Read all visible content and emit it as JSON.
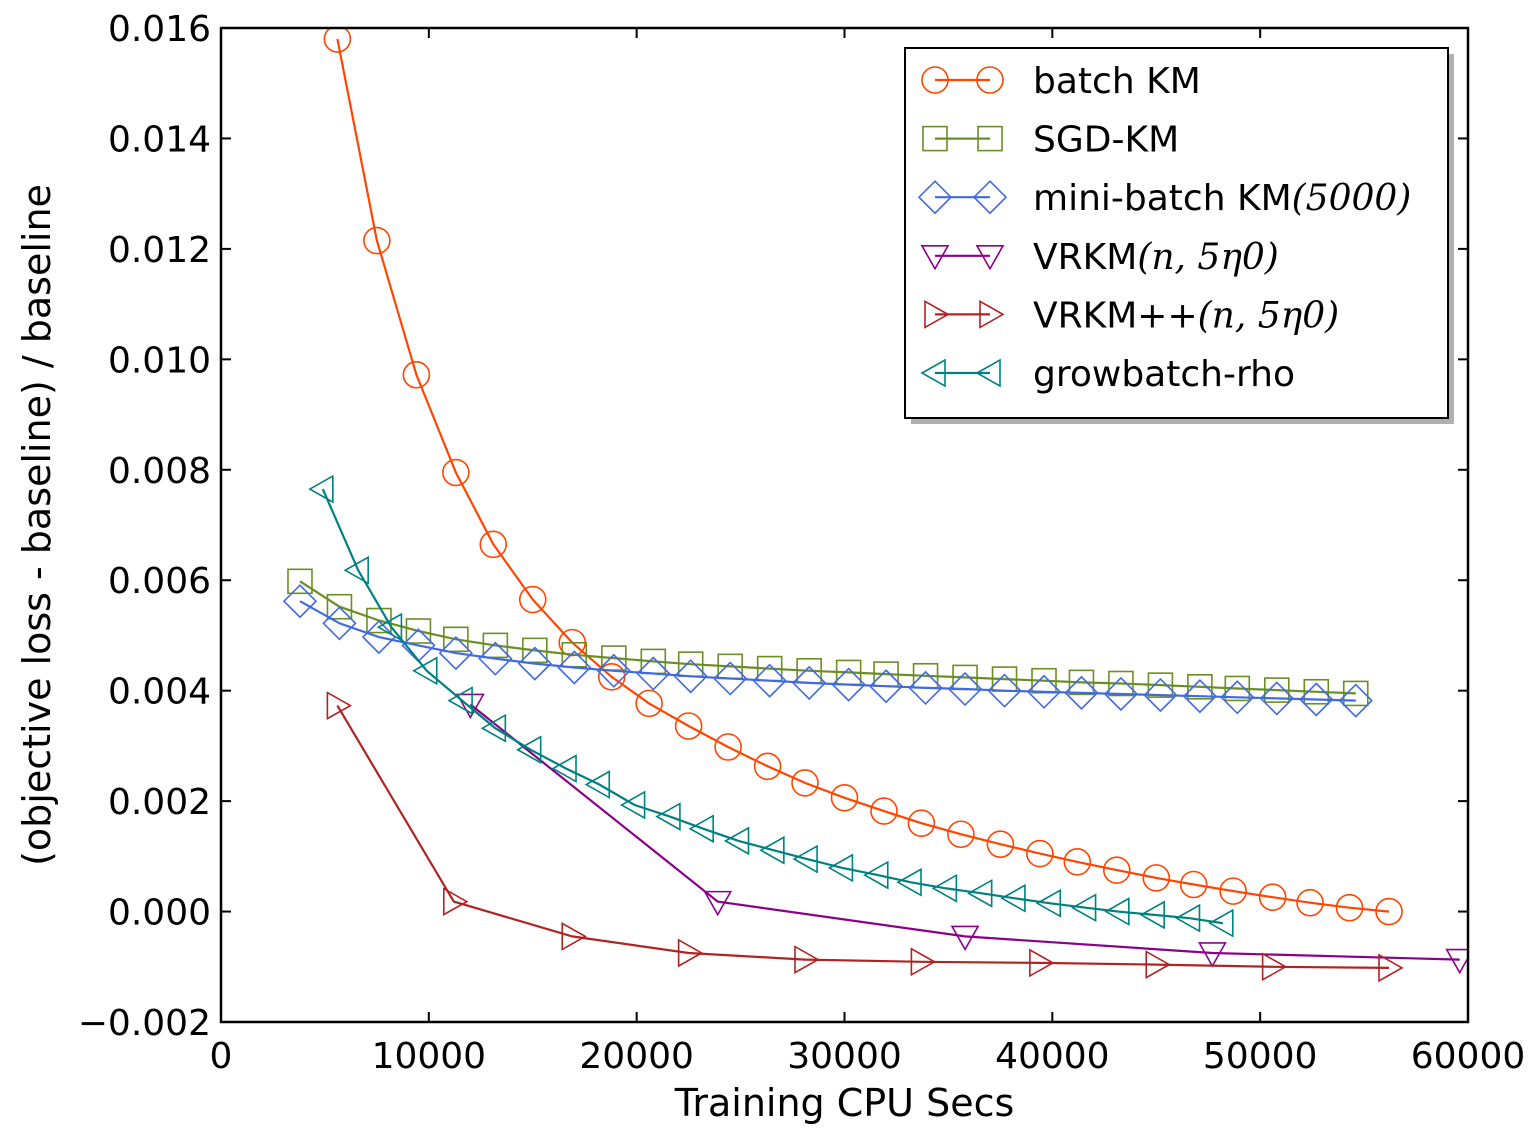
{
  "chart_data": {
    "type": "line",
    "xlabel": "Training CPU Secs",
    "ylabel": "(objective loss - baseline) / baseline",
    "xlim": [
      0,
      60000
    ],
    "ylim": [
      -0.002,
      0.016
    ],
    "xticks": [
      0,
      10000,
      20000,
      30000,
      40000,
      50000,
      60000
    ],
    "xtick_labels": [
      "0",
      "10000",
      "20000",
      "30000",
      "40000",
      "50000",
      "60000"
    ],
    "yticks": [
      -0.002,
      0,
      0.002,
      0.004,
      0.006,
      0.008,
      0.01,
      0.012,
      0.014,
      0.016
    ],
    "ytick_labels": [
      "−0.002",
      "0.000",
      "0.002",
      "0.004",
      "0.006",
      "0.008",
      "0.010",
      "0.012",
      "0.014",
      "0.016"
    ],
    "grid": false,
    "legend_position": "top-right",
    "series": [
      {
        "name": "batch KM",
        "color": "#ff4500",
        "marker": "circle",
        "x": [
          5600,
          7500,
          9400,
          11300,
          13100,
          15000,
          16900,
          18800,
          20600,
          22500,
          24400,
          26300,
          28100,
          30000,
          31900,
          33700,
          35600,
          37500,
          39400,
          41200,
          43100,
          45000,
          46800,
          48700,
          50600,
          52400,
          54300,
          56200
        ],
        "y": [
          0.0158,
          0.01215,
          0.00972,
          0.00795,
          0.00665,
          0.00565,
          0.00487,
          0.00425,
          0.00377,
          0.00336,
          0.00298,
          0.00263,
          0.00233,
          0.00206,
          0.00182,
          0.0016,
          0.0014,
          0.00122,
          0.00105,
          0.0009,
          0.00075,
          0.00061,
          0.00049,
          0.00037,
          0.00026,
          0.00016,
          7e-05,
          0.0
        ]
      },
      {
        "name": "SGD-KM",
        "color": "#6b8e23",
        "marker": "square",
        "x": [
          3800,
          5700,
          7600,
          9500,
          11300,
          13200,
          15100,
          17000,
          18900,
          20800,
          22600,
          24500,
          26400,
          28300,
          30200,
          32000,
          33900,
          35800,
          37700,
          39600,
          41400,
          43300,
          45200,
          47100,
          48900,
          50800,
          52700,
          54600
        ],
        "y": [
          0.00598,
          0.00552,
          0.00527,
          0.00508,
          0.00493,
          0.00482,
          0.00473,
          0.00465,
          0.00459,
          0.00453,
          0.00448,
          0.00444,
          0.0044,
          0.00436,
          0.00433,
          0.0043,
          0.00427,
          0.00424,
          0.00421,
          0.00418,
          0.00415,
          0.00413,
          0.0041,
          0.00407,
          0.00404,
          0.00401,
          0.00398,
          0.00395
        ]
      },
      {
        "name": "mini-batch KM(5000)",
        "color": "#4169e1",
        "marker": "diamond",
        "x": [
          3800,
          5700,
          7600,
          9500,
          11300,
          13200,
          15100,
          17000,
          18900,
          20800,
          22600,
          24500,
          26400,
          28300,
          30200,
          32000,
          33900,
          35800,
          37700,
          39600,
          41400,
          43300,
          45200,
          47100,
          48900,
          50800,
          52700,
          54600
        ],
        "y": [
          0.00562,
          0.00522,
          0.00497,
          0.00482,
          0.00468,
          0.00458,
          0.00449,
          0.00442,
          0.00436,
          0.00431,
          0.00426,
          0.00422,
          0.00418,
          0.00414,
          0.00411,
          0.00408,
          0.00405,
          0.00403,
          0.004,
          0.00398,
          0.00396,
          0.00394,
          0.00392,
          0.0039,
          0.00388,
          0.00386,
          0.00384,
          0.00382
        ]
      },
      {
        "name": "VRKM(n, 5η0)",
        "color": "#8b008b",
        "marker": "triangle-down",
        "x": [
          12000,
          23900,
          35800,
          47700,
          59600
        ],
        "y": [
          0.00375,
          0.00018,
          -0.00045,
          -0.00075,
          -0.00087
        ]
      },
      {
        "name": "VRKM++(n, 5η0)",
        "color": "#b22222",
        "marker": "triangle-right",
        "x": [
          5600,
          11200,
          16900,
          22500,
          28100,
          33700,
          39400,
          45000,
          50600,
          56200
        ],
        "y": [
          0.00373,
          0.00018,
          -0.00045,
          -0.00075,
          -0.00087,
          -0.00091,
          -0.00093,
          -0.00096,
          -0.001,
          -0.00102
        ]
      },
      {
        "name": "growbatch-rho",
        "color": "#008080",
        "marker": "triangle-left",
        "x": [
          4900,
          6600,
          8200,
          9900,
          11600,
          13200,
          14900,
          16600,
          18200,
          19900,
          21600,
          23200,
          24900,
          26600,
          28200,
          29900,
          31600,
          33200,
          34900,
          36600,
          38200,
          39900,
          41600,
          43200,
          44900,
          46600,
          48200
        ],
        "y": [
          0.00765,
          0.00618,
          0.00515,
          0.00436,
          0.00382,
          0.00332,
          0.00293,
          0.00259,
          0.0023,
          0.00193,
          0.00172,
          0.0015,
          0.00128,
          0.00111,
          0.00095,
          0.00079,
          0.00066,
          0.00053,
          0.00042,
          0.00033,
          0.00024,
          0.00015,
          7e-05,
          0.0,
          -6e-05,
          -0.00012,
          -0.00021
        ]
      }
    ],
    "legend_labels": [
      {
        "plain": "batch KM",
        "math": ""
      },
      {
        "plain": "SGD-KM",
        "math": ""
      },
      {
        "plain": "mini-batch KM",
        "math": "(5000)"
      },
      {
        "plain": "VRKM",
        "math": "(n, 5η0)"
      },
      {
        "plain": "VRKM++",
        "math": "(n, 5η0)"
      },
      {
        "plain": "growbatch-rho",
        "math": ""
      }
    ]
  }
}
